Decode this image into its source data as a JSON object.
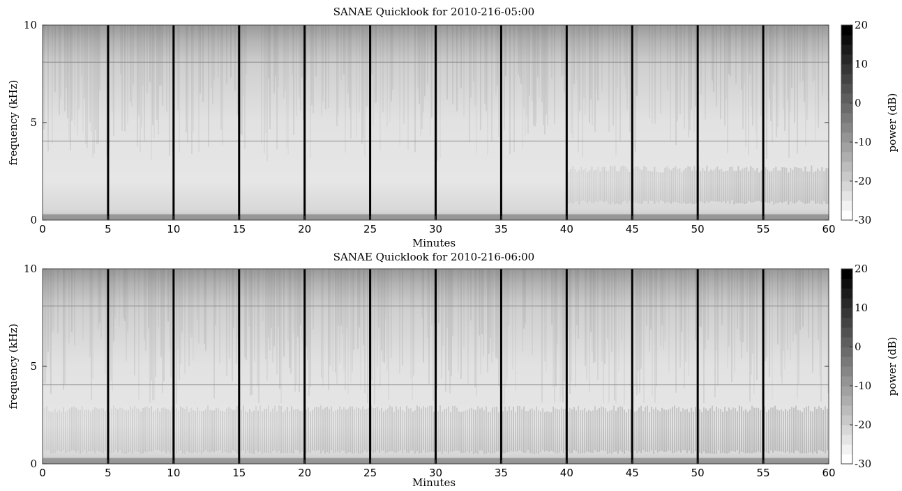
{
  "chart_data": [
    {
      "type": "heatmap",
      "title": "SANAE Quicklook for 2010-216-05:00",
      "xlabel": "Minutes",
      "ylabel": "frequency (kHz)",
      "xlim": [
        0,
        60
      ],
      "ylim": [
        0,
        10
      ],
      "xticks": [
        0,
        5,
        10,
        15,
        20,
        25,
        30,
        35,
        40,
        45,
        50,
        55,
        60
      ],
      "yticks": [
        0,
        5,
        10
      ],
      "minute_markers": [
        5,
        10,
        15,
        20,
        25,
        30,
        35,
        40,
        45,
        50,
        55
      ],
      "horizontal_lines_khz": [
        4.05,
        8.1
      ],
      "colorbar": {
        "label": "power (dB)",
        "range": [
          -30,
          20
        ],
        "ticks": [
          20,
          10,
          0,
          -10,
          -20,
          -30
        ],
        "colormap": "gray (white to black)"
      },
      "features": {
        "low_freq_band_khz": [
          0,
          0.3
        ],
        "band_khz": [
          0.8,
          2.8
        ],
        "band_start_minute": 40
      }
    },
    {
      "type": "heatmap",
      "title": "SANAE Quicklook for 2010-216-06:00",
      "xlabel": "Minutes",
      "ylabel": "frequency (kHz)",
      "xlim": [
        0,
        60
      ],
      "ylim": [
        0,
        10
      ],
      "xticks": [
        0,
        5,
        10,
        15,
        20,
        25,
        30,
        35,
        40,
        45,
        50,
        55,
        60
      ],
      "yticks": [
        0,
        5,
        10
      ],
      "minute_markers": [
        5,
        10,
        15,
        20,
        25,
        30,
        35,
        40,
        45,
        50,
        55
      ],
      "horizontal_lines_khz": [
        4.05,
        8.1
      ],
      "colorbar": {
        "label": "power (dB)",
        "range": [
          -30,
          20
        ],
        "ticks": [
          20,
          10,
          0,
          -10,
          -20,
          -30
        ],
        "colormap": "gray (white to black)"
      },
      "features": {
        "low_freq_band_khz": [
          0,
          0.3
        ],
        "band_khz": [
          0.5,
          3.0
        ],
        "band_start_minute": 0
      }
    }
  ]
}
